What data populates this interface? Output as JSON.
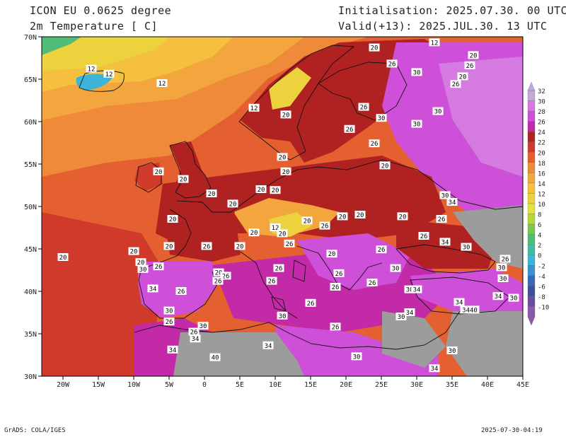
{
  "header": {
    "model": "ICON EU 0.0625 degree",
    "variable": "2m Temperature [ C]",
    "init": "Initialisation: 2025.07.30. 00 UTC",
    "valid": "Valid(+13): 2025.JUL.30. 13 UTC"
  },
  "footer": {
    "left": "GrADS: COLA/IGES",
    "right": "2025-07-30-04:19"
  },
  "axes": {
    "lon_labels": [
      "20W",
      "15W",
      "10W",
      "5W",
      "0",
      "5E",
      "10E",
      "15E",
      "20E",
      "25E",
      "30E",
      "35E",
      "40E",
      "45E"
    ],
    "lat_labels": [
      "70N",
      "65N",
      "60N",
      "55N",
      "50N",
      "45N",
      "40N",
      "35N",
      "30N"
    ],
    "lon_range": [
      -23,
      45
    ],
    "lat_range": [
      30,
      70
    ]
  },
  "legend": {
    "labels": [
      "32",
      "30",
      "28",
      "26",
      "24",
      "22",
      "20",
      "18",
      "16",
      "14",
      "12",
      "10",
      "8",
      "6",
      "4",
      "2",
      "0",
      "-2",
      "-4",
      "-6",
      "-8",
      "-10"
    ],
    "colors": [
      "#c4a8d8",
      "#d47ae0",
      "#cf50d8",
      "#c22aa8",
      "#b02222",
      "#d03a2a",
      "#e56030",
      "#ef8a3a",
      "#f3a63e",
      "#f5c040",
      "#ecd23c",
      "#e3e33a",
      "#b6d63e",
      "#78c653",
      "#4fbd77",
      "#3cbda8",
      "#3db5d8",
      "#3a92d3",
      "#3868b8",
      "#3b4f9d",
      "#6a4b9d",
      "#8a5aa8"
    ]
  },
  "contour_labels": [
    {
      "text": "12",
      "lon": -16,
      "lat": 66.2
    },
    {
      "text": "12",
      "lon": -13.5,
      "lat": 65.6
    },
    {
      "text": "12",
      "lon": -6,
      "lat": 64.5
    },
    {
      "text": "20",
      "lon": 24,
      "lat": 68.7
    },
    {
      "text": "12",
      "lon": 32.5,
      "lat": 69.3
    },
    {
      "text": "20",
      "lon": 38,
      "lat": 67.8
    },
    {
      "text": "26",
      "lon": 26.5,
      "lat": 66.8
    },
    {
      "text": "26",
      "lon": 37.5,
      "lat": 66.6
    },
    {
      "text": "30",
      "lon": 30,
      "lat": 65.8
    },
    {
      "text": "20",
      "lon": 36.5,
      "lat": 65.3
    },
    {
      "text": "26",
      "lon": 35.5,
      "lat": 64.4
    },
    {
      "text": "12",
      "lon": 7,
      "lat": 61.6
    },
    {
      "text": "20",
      "lon": 11.5,
      "lat": 60.8
    },
    {
      "text": "26",
      "lon": 22.5,
      "lat": 61.7
    },
    {
      "text": "30",
      "lon": 25,
      "lat": 60.4
    },
    {
      "text": "30",
      "lon": 30,
      "lat": 59.7
    },
    {
      "text": "30",
      "lon": 33,
      "lat": 61.2
    },
    {
      "text": "26",
      "lon": 20.5,
      "lat": 59.1
    },
    {
      "text": "26",
      "lon": 24,
      "lat": 57.4
    },
    {
      "text": "20",
      "lon": 11,
      "lat": 55.8
    },
    {
      "text": "20",
      "lon": 25.5,
      "lat": 54.8
    },
    {
      "text": "20",
      "lon": 11.5,
      "lat": 54.1
    },
    {
      "text": "20",
      "lon": -6.5,
      "lat": 54.1
    },
    {
      "text": "20",
      "lon": -3,
      "lat": 53.2
    },
    {
      "text": "20",
      "lon": 1,
      "lat": 51.5
    },
    {
      "text": "20",
      "lon": 8,
      "lat": 52
    },
    {
      "text": "20",
      "lon": 10,
      "lat": 51.9
    },
    {
      "text": "30",
      "lon": 34,
      "lat": 51.3
    },
    {
      "text": "34",
      "lon": 35,
      "lat": 50.5
    },
    {
      "text": "20",
      "lon": 4,
      "lat": 50.3
    },
    {
      "text": "20",
      "lon": -4.5,
      "lat": 48.5
    },
    {
      "text": "20",
      "lon": 14.5,
      "lat": 48.3
    },
    {
      "text": "20",
      "lon": 19.5,
      "lat": 48.8
    },
    {
      "text": "20",
      "lon": 22,
      "lat": 49
    },
    {
      "text": "20",
      "lon": 28,
      "lat": 48.8
    },
    {
      "text": "26",
      "lon": 33.5,
      "lat": 48.5
    },
    {
      "text": "12",
      "lon": 10,
      "lat": 47.5
    },
    {
      "text": "26",
      "lon": 17,
      "lat": 47.7
    },
    {
      "text": "20",
      "lon": 7,
      "lat": 46.9
    },
    {
      "text": "20",
      "lon": 11,
      "lat": 46.8
    },
    {
      "text": "26",
      "lon": 31,
      "lat": 46.5
    },
    {
      "text": "26",
      "lon": 12,
      "lat": 45.6
    },
    {
      "text": "26",
      "lon": 0.3,
      "lat": 45.3
    },
    {
      "text": "20",
      "lon": -5,
      "lat": 45.3
    },
    {
      "text": "20",
      "lon": -10,
      "lat": 44.7
    },
    {
      "text": "20",
      "lon": 5,
      "lat": 45.3
    },
    {
      "text": "34",
      "lon": 34,
      "lat": 45.8
    },
    {
      "text": "30",
      "lon": 37,
      "lat": 45.2
    },
    {
      "text": "26",
      "lon": 25,
      "lat": 44.9
    },
    {
      "text": "20",
      "lon": 18,
      "lat": 44.4
    },
    {
      "text": "20",
      "lon": -20,
      "lat": 44
    },
    {
      "text": "20",
      "lon": -9,
      "lat": 43.4
    },
    {
      "text": "30",
      "lon": -8.7,
      "lat": 42.6
    },
    {
      "text": "26",
      "lon": -6.5,
      "lat": 42.9
    },
    {
      "text": "26",
      "lon": 10.5,
      "lat": 42.7
    },
    {
      "text": "30",
      "lon": 27,
      "lat": 42.7
    },
    {
      "text": "26",
      "lon": 42.5,
      "lat": 43.8
    },
    {
      "text": "30",
      "lon": 42,
      "lat": 42.8
    },
    {
      "text": "20",
      "lon": 2,
      "lat": 42.2
    },
    {
      "text": "26",
      "lon": 3,
      "lat": 41.8
    },
    {
      "text": "26",
      "lon": 1.9,
      "lat": 41.2
    },
    {
      "text": "26",
      "lon": 19,
      "lat": 42.1
    },
    {
      "text": "30",
      "lon": 42.2,
      "lat": 41.5
    },
    {
      "text": "26",
      "lon": 9.5,
      "lat": 41.2
    },
    {
      "text": "26",
      "lon": 18.5,
      "lat": 40.5
    },
    {
      "text": "26",
      "lon": 23.7,
      "lat": 41
    },
    {
      "text": "34",
      "lon": -7.3,
      "lat": 40.3
    },
    {
      "text": "26",
      "lon": -3.3,
      "lat": 40
    },
    {
      "text": "30",
      "lon": 29,
      "lat": 40.2
    },
    {
      "text": "34",
      "lon": 30,
      "lat": 40.2
    },
    {
      "text": "34",
      "lon": 41.5,
      "lat": 39.4
    },
    {
      "text": "30",
      "lon": 43.7,
      "lat": 39.2
    },
    {
      "text": "34",
      "lon": 36,
      "lat": 38.7
    },
    {
      "text": "3440",
      "lon": 37.5,
      "lat": 37.8
    },
    {
      "text": "26",
      "lon": 15,
      "lat": 38.6
    },
    {
      "text": "30",
      "lon": -5,
      "lat": 37.7
    },
    {
      "text": "34",
      "lon": 29,
      "lat": 37.5
    },
    {
      "text": "30",
      "lon": 11,
      "lat": 37.1
    },
    {
      "text": "30",
      "lon": 27.8,
      "lat": 37
    },
    {
      "text": "26",
      "lon": -5,
      "lat": 36.4
    },
    {
      "text": "30",
      "lon": -0.2,
      "lat": 35.9
    },
    {
      "text": "26",
      "lon": -1.5,
      "lat": 35.2
    },
    {
      "text": "26",
      "lon": 18.5,
      "lat": 35.8
    },
    {
      "text": "34",
      "lon": -1.3,
      "lat": 34.4
    },
    {
      "text": "34",
      "lon": 9,
      "lat": 33.6
    },
    {
      "text": "34",
      "lon": -4.5,
      "lat": 33.1
    },
    {
      "text": "30",
      "lon": 35,
      "lat": 33
    },
    {
      "text": "40",
      "lon": 1.5,
      "lat": 32.2
    },
    {
      "text": "30",
      "lon": 21.5,
      "lat": 32.3
    },
    {
      "text": "34",
      "lon": 32.5,
      "lat": 30.9
    }
  ]
}
